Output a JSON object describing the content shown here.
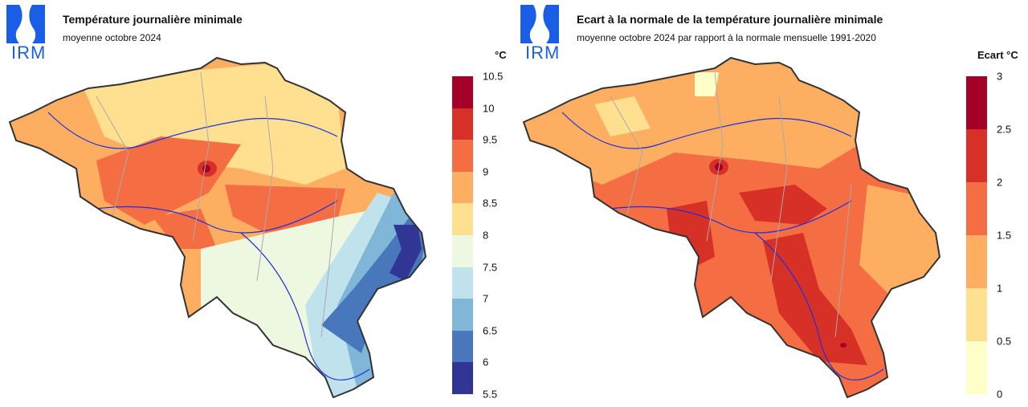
{
  "logo": {
    "text": "IRM",
    "color": "#1a5ee6"
  },
  "left": {
    "title": "Température journalière minimale",
    "subtitle": "moyenne octobre 2024",
    "unit": "°C",
    "ticks": [
      "10.5",
      "10",
      "9.5",
      "9",
      "8.5",
      "8",
      "7.5",
      "7",
      "6.5",
      "6",
      "5.5"
    ],
    "colors": [
      "#a50026",
      "#d73027",
      "#f46d43",
      "#fdae61",
      "#fee090",
      "#eef7df",
      "#bfe2ec",
      "#80b6d8",
      "#4878bb",
      "#313695"
    ]
  },
  "right": {
    "title": "Ecart à la normale de la température journalière minimale",
    "subtitle": "moyenne octobre 2024 par rapport à la normale mensuelle 1991-2020",
    "unit": "Ecart °C",
    "ticks": [
      "3",
      "2.5",
      "2",
      "1.5",
      "1",
      "0.5",
      "0"
    ],
    "colors": [
      "#a50026",
      "#d73027",
      "#f46d43",
      "#fdae61",
      "#fee090",
      "#ffffc8"
    ]
  }
}
